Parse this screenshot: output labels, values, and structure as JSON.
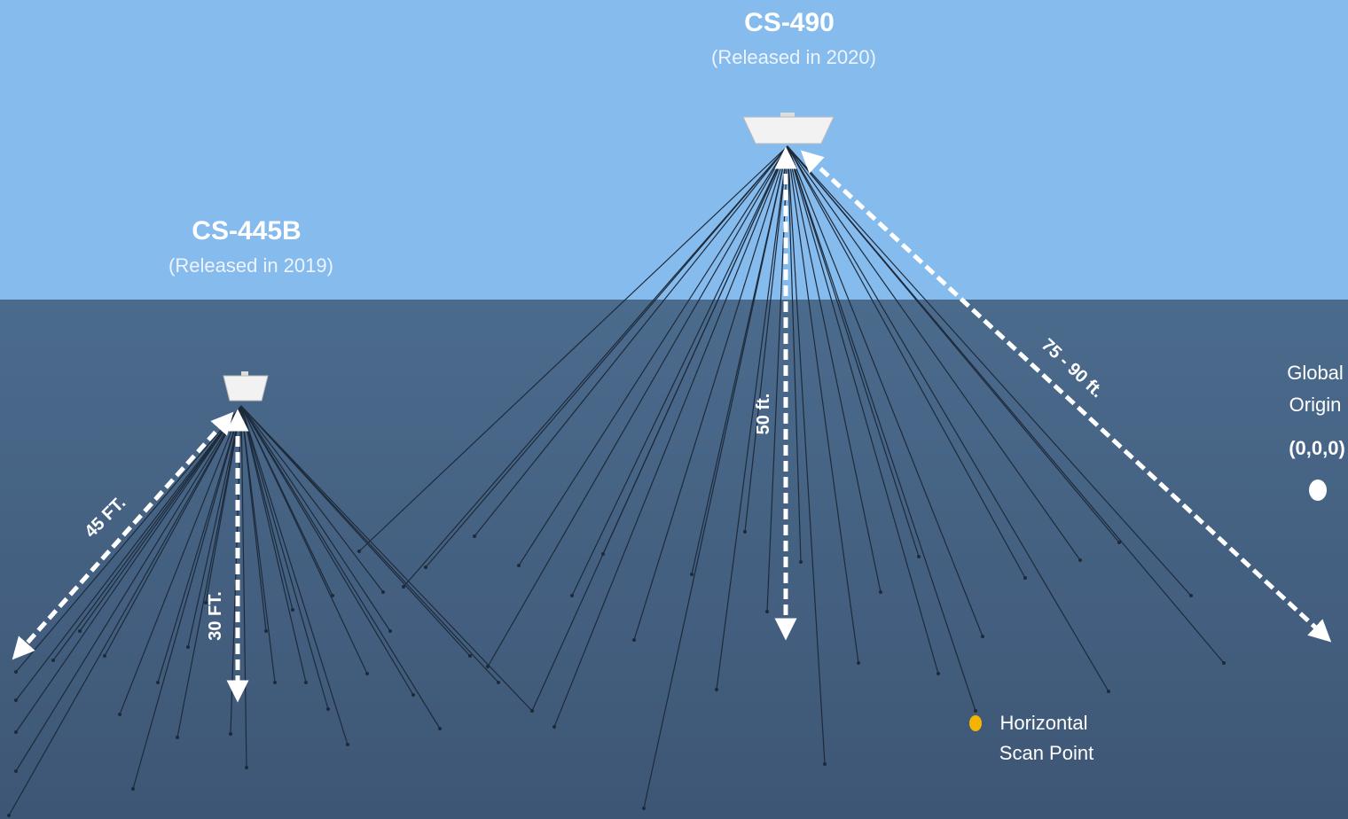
{
  "devices": [
    {
      "name": "CS-490",
      "release": "(Released in 2020)"
    },
    {
      "name": "CS-445B",
      "release": "(Released in 2019)"
    }
  ],
  "measurements": [
    {
      "label": "50 ft."
    },
    {
      "label": "75 - 90 ft."
    },
    {
      "label": "45 FT."
    },
    {
      "label": "30 FT."
    }
  ],
  "origin": {
    "lines": [
      "Global",
      "Origin"
    ],
    "coords": "(0,0,0)"
  },
  "scan_point": {
    "lines": [
      "Horizontal",
      "Scan Point"
    ]
  }
}
